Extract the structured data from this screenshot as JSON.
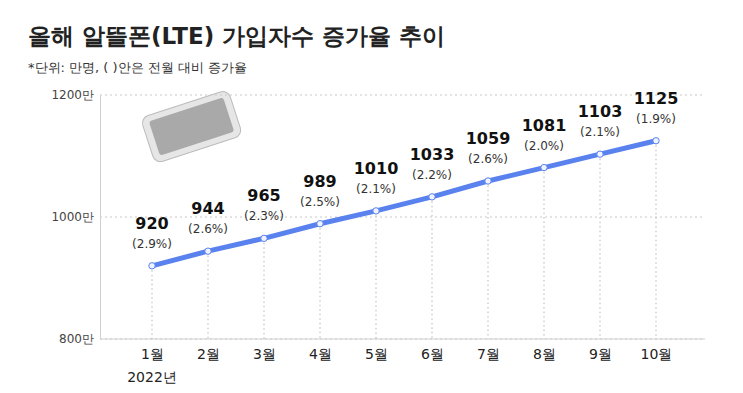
{
  "chart_data": {
    "type": "line",
    "title": "올해 알뜰폰(LTE) 가입자수 증가율 추이",
    "subtitle": "*단위: 만명, ( )안은 전월 대비 증가율",
    "categories": [
      "1월",
      "2월",
      "3월",
      "4월",
      "5월",
      "6월",
      "7월",
      "8월",
      "9월",
      "10월"
    ],
    "values": [
      920,
      944,
      965,
      989,
      1010,
      1033,
      1059,
      1081,
      1103,
      1125
    ],
    "growth": [
      2.9,
      2.6,
      2.3,
      2.5,
      2.1,
      2.2,
      2.6,
      2.0,
      2.1,
      1.9
    ],
    "growth_labels": [
      "(2.9%)",
      "(2.6%)",
      "(2.3%)",
      "(2.5%)",
      "(2.1%)",
      "(2.2%)",
      "(2.6%)",
      "(2.0%)",
      "(2.1%)",
      "(1.9%)"
    ],
    "annotations": [
      {
        "text": "2022년",
        "x": "1월"
      }
    ],
    "color": "#5a82ee",
    "marker": "circle",
    "ylim": [
      800,
      1200
    ],
    "yticks": [
      {
        "value": 800,
        "label": "800만"
      },
      {
        "value": 1000,
        "label": "1000만"
      },
      {
        "value": 1200,
        "label": "1200만"
      }
    ],
    "grid": true,
    "data_labels": true
  }
}
